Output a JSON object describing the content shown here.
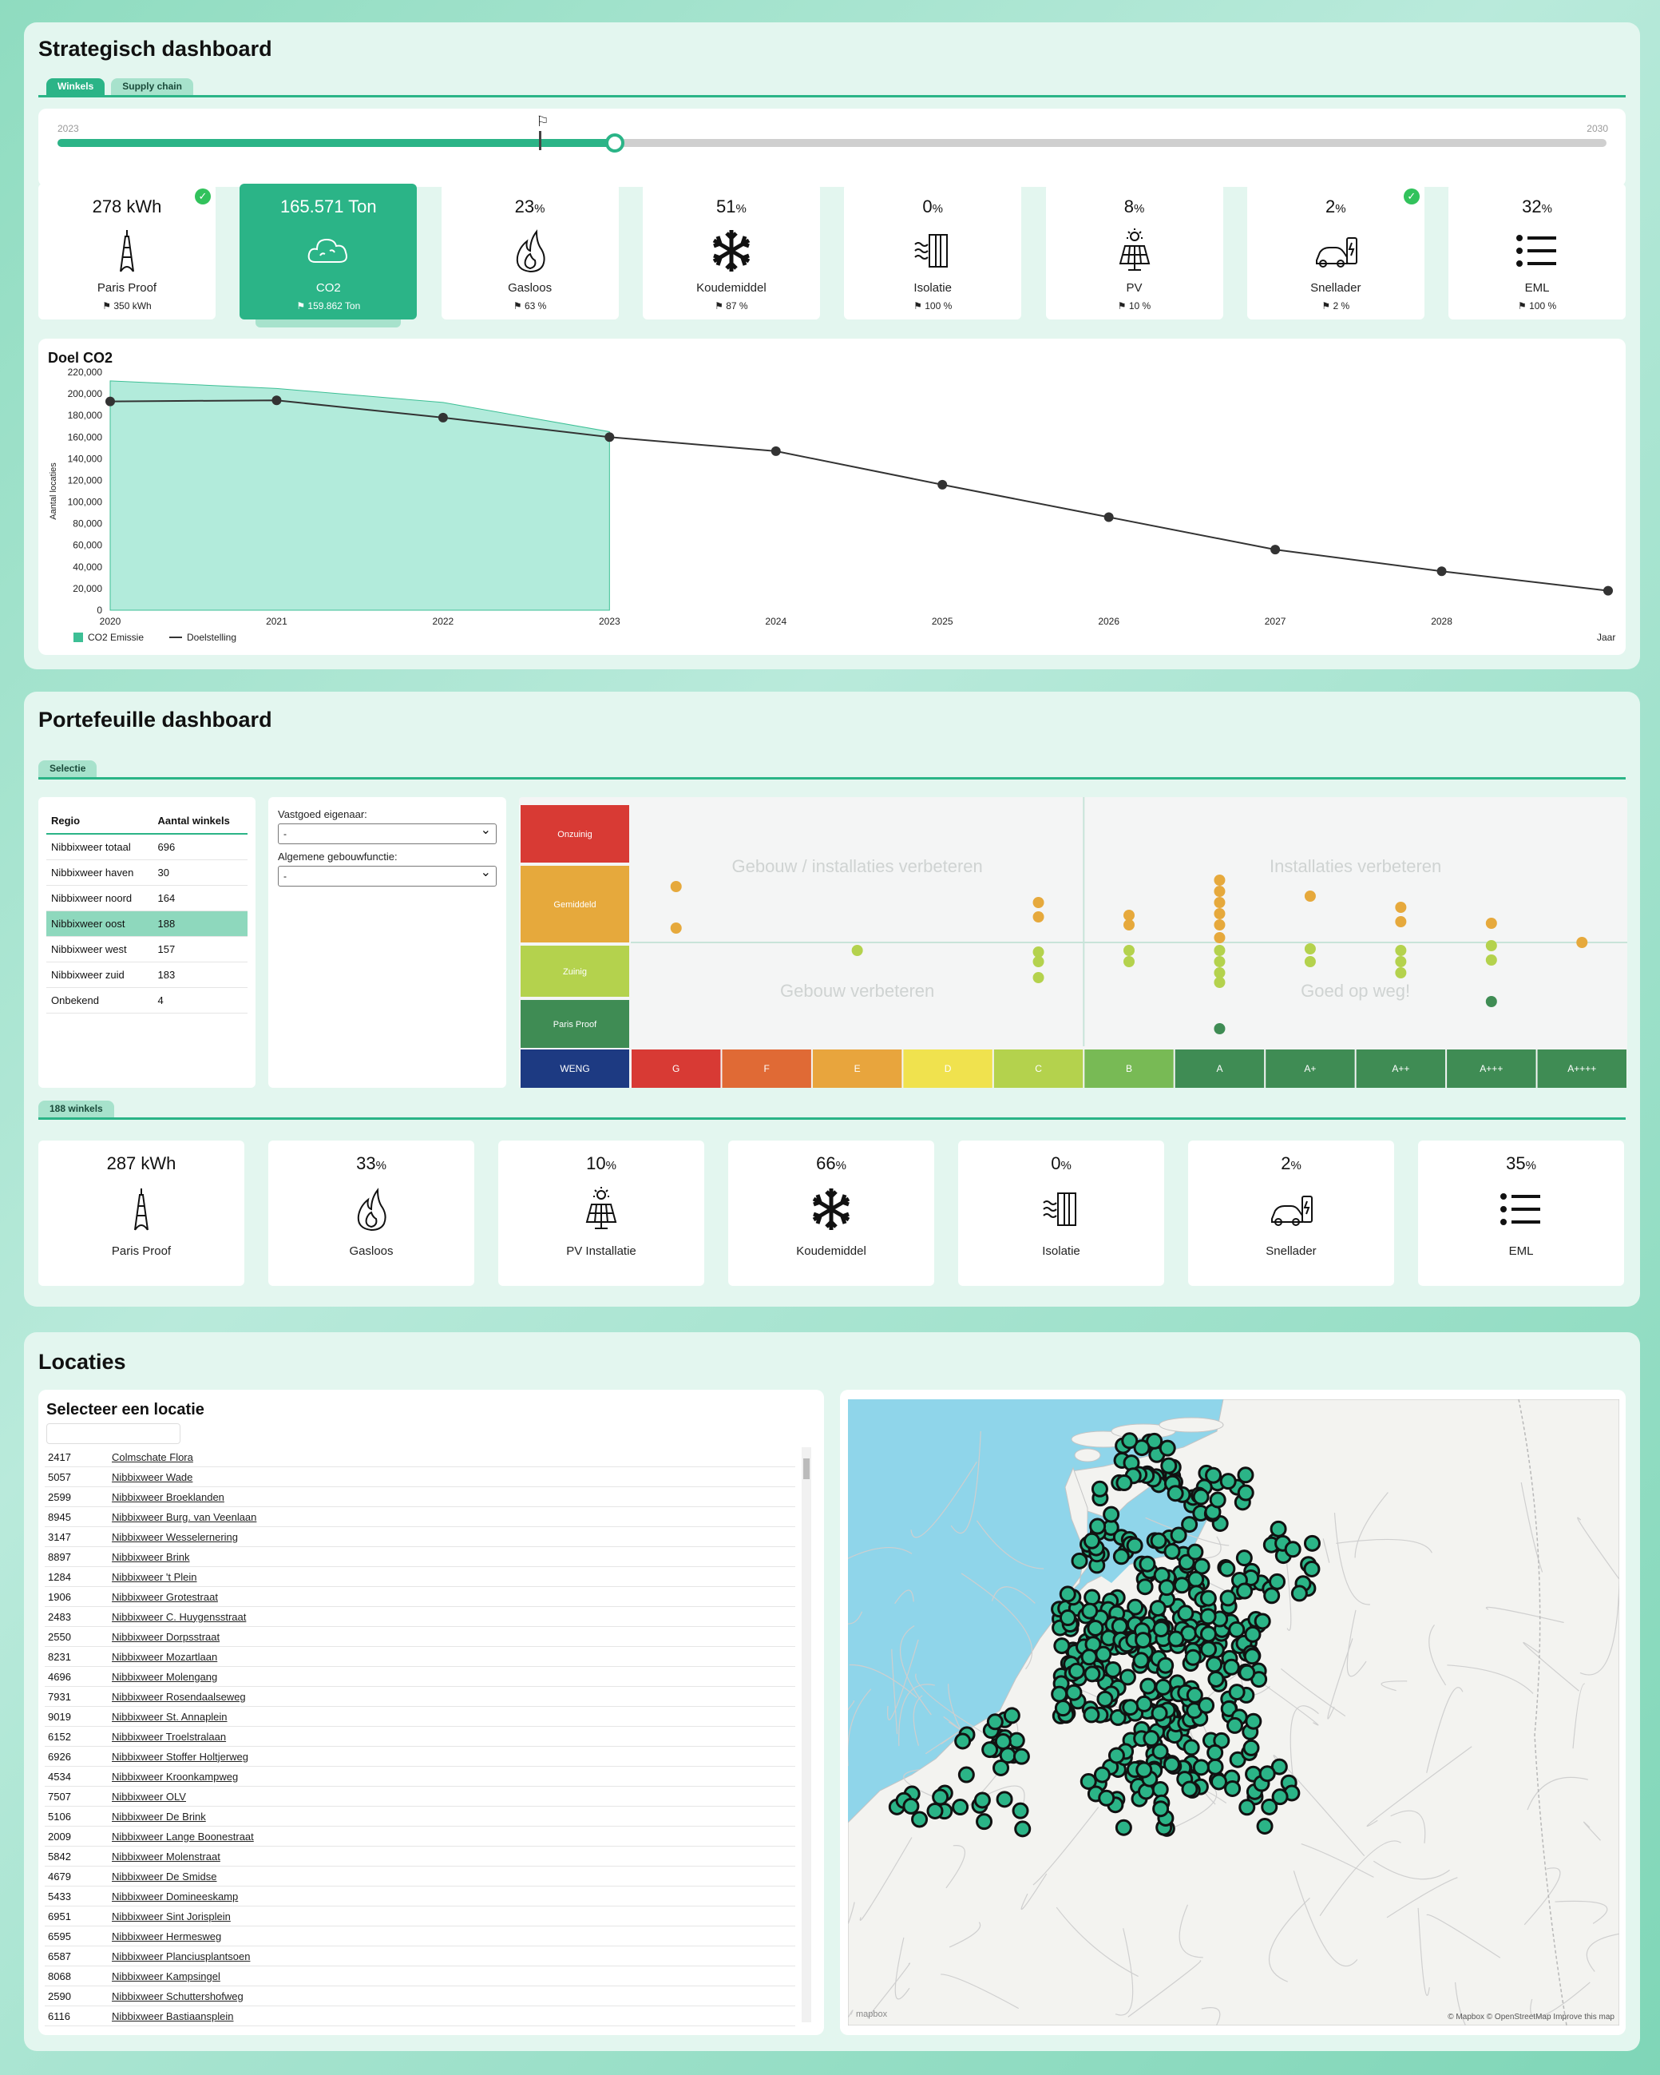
{
  "strategic": {
    "title": "Strategisch dashboard",
    "tabs": [
      "Winkels",
      "Supply chain"
    ],
    "slider": {
      "start": "2023",
      "end": "2030",
      "progress": 0.36,
      "flag": 0.31
    },
    "kpis": [
      {
        "value": "278 kWh",
        "unit": "",
        "label": "Paris Proof",
        "target": "350 kWh",
        "icon": "eiffel-tower-icon",
        "check": true
      },
      {
        "value": "165.571 Ton",
        "unit": "",
        "label": "CO2",
        "target": "159.862 Ton",
        "icon": "cloud-icon",
        "check": false
      },
      {
        "value": "23",
        "unit": "%",
        "label": "Gasloos",
        "target": "63 %",
        "icon": "flame-icon",
        "check": false
      },
      {
        "value": "51",
        "unit": "%",
        "label": "Koudemiddel",
        "target": "87 %",
        "icon": "snowflake-icon",
        "check": false
      },
      {
        "value": "0",
        "unit": "%",
        "label": "Isolatie",
        "target": "100 %",
        "icon": "insulation-icon",
        "check": false
      },
      {
        "value": "8",
        "unit": "%",
        "label": "PV",
        "target": "10 %",
        "icon": "solar-panel-icon",
        "check": false
      },
      {
        "value": "2",
        "unit": "%",
        "label": "Snellader",
        "target": "2 %",
        "icon": "ev-charger-icon",
        "check": true
      },
      {
        "value": "32",
        "unit": "%",
        "label": "EML",
        "target": "100 %",
        "icon": "list-icon",
        "check": false
      }
    ]
  },
  "chart_data": {
    "type": "line",
    "title": "Doel CO2",
    "ylabel": "Aantal locaties",
    "xlabel": "Jaar",
    "x": [
      2020,
      2021,
      2022,
      2023,
      2024,
      2025,
      2026,
      2027,
      2028,
      2029
    ],
    "x_ticks": [
      "2020",
      "2021",
      "2022",
      "2023",
      "2024",
      "2025",
      "2026",
      "2027",
      "2028"
    ],
    "y_ticks": [
      "0",
      "20,000",
      "40,000",
      "60,000",
      "80,000",
      "100,000",
      "120,000",
      "140,000",
      "160,000",
      "180,000",
      "200,000",
      "220,000"
    ],
    "ylim": [
      0,
      220000
    ],
    "series": [
      {
        "name": "CO2 Emissie",
        "type": "area",
        "color": "#b2ebdb",
        "x": [
          2020,
          2021,
          2022,
          2023
        ],
        "values": [
          212000,
          205000,
          192000,
          165000
        ]
      },
      {
        "name": "Doelstelling",
        "type": "line",
        "color": "#333333",
        "x": [
          2020,
          2021,
          2022,
          2023,
          2024,
          2025,
          2026,
          2027,
          2028,
          2029
        ],
        "values": [
          193000,
          194000,
          178000,
          160000,
          147000,
          116000,
          86000,
          56000,
          36000,
          18000
        ]
      }
    ],
    "legend": "bottom-left"
  },
  "portfolio": {
    "title": "Portefeuille dashboard",
    "tab": "Selectie",
    "region_table": {
      "headers": [
        "Regio",
        "Aantal winkels"
      ],
      "rows": [
        [
          "Nibbixweer totaal",
          "696"
        ],
        [
          "Nibbixweer haven",
          "30"
        ],
        [
          "Nibbixweer noord",
          "164"
        ],
        [
          "Nibbixweer oost",
          "188"
        ],
        [
          "Nibbixweer west",
          "157"
        ],
        [
          "Nibbixweer zuid",
          "183"
        ],
        [
          "Onbekend",
          "4"
        ]
      ],
      "highlight": 3
    },
    "filters": [
      {
        "label": "Vastgoed eigenaar:",
        "value": "-"
      },
      {
        "label": "Algemene gebouwfunctie:",
        "value": "-"
      }
    ],
    "matrix": {
      "rows": [
        {
          "label": "Onzuinig",
          "color": "#d83a34"
        },
        {
          "label": "Gemiddeld",
          "color": "#e6a93c"
        },
        {
          "label": "Zuinig",
          "color": "#b4d24d"
        },
        {
          "label": "Paris Proof",
          "color": "#3f8c54"
        }
      ],
      "corner": "WENG",
      "cols": [
        {
          "label": "G",
          "color": "#d83a34"
        },
        {
          "label": "F",
          "color": "#e06a35"
        },
        {
          "label": "E",
          "color": "#e8a53d"
        },
        {
          "label": "D",
          "color": "#f0e24e"
        },
        {
          "label": "C",
          "color": "#b4d24d"
        },
        {
          "label": "B",
          "color": "#78ba55"
        },
        {
          "label": "A",
          "color": "#3f8c54"
        },
        {
          "label": "A+",
          "color": "#3f8c54"
        },
        {
          "label": "A++",
          "color": "#3f8c54"
        },
        {
          "label": "A+++",
          "color": "#3f8c54"
        },
        {
          "label": "A++++",
          "color": "#3f8c54"
        }
      ],
      "quadrants": [
        "Gebouw / installaties verbeteren",
        "Installaties verbeteren",
        "Gebouw verbeteren",
        "Goed op weg!"
      ]
    },
    "count_tab": "188 winkels",
    "kpis": [
      {
        "value": "287 kWh",
        "unit": "",
        "label": "Paris Proof",
        "icon": "eiffel-tower-icon"
      },
      {
        "value": "33",
        "unit": "%",
        "label": "Gasloos",
        "icon": "flame-icon"
      },
      {
        "value": "10",
        "unit": "%",
        "label": "PV Installatie",
        "icon": "solar-panel-icon"
      },
      {
        "value": "66",
        "unit": "%",
        "label": "Koudemiddel",
        "icon": "snowflake-icon"
      },
      {
        "value": "0",
        "unit": "%",
        "label": "Isolatie",
        "icon": "insulation-icon"
      },
      {
        "value": "2",
        "unit": "%",
        "label": "Snellader",
        "icon": "ev-charger-icon"
      },
      {
        "value": "35",
        "unit": "%",
        "label": "EML",
        "icon": "list-icon"
      }
    ]
  },
  "locations": {
    "title": "Locaties",
    "list_title": "Selecteer een locatie",
    "search_placeholder": "",
    "items": [
      [
        "2417",
        "Colmschate Flora"
      ],
      [
        "5057",
        "Nibbixweer Wade"
      ],
      [
        "2599",
        "Nibbixweer Broeklanden"
      ],
      [
        "8945",
        "Nibbixweer Burg. van Veenlaan"
      ],
      [
        "3147",
        "Nibbixweer Wesselernering"
      ],
      [
        "8897",
        "Nibbixweer Brink"
      ],
      [
        "1284",
        "Nibbixweer 't Plein"
      ],
      [
        "1906",
        "Nibbixweer Grotestraat"
      ],
      [
        "2483",
        "Nibbixweer C. Huygensstraat"
      ],
      [
        "2550",
        "Nibbixweer Dorpsstraat"
      ],
      [
        "8231",
        "Nibbixweer Mozartlaan"
      ],
      [
        "4696",
        "Nibbixweer Molengang"
      ],
      [
        "7931",
        "Nibbixweer Rosendaalseweg"
      ],
      [
        "9019",
        "Nibbixweer St. Annaplein"
      ],
      [
        "6152",
        "Nibbixweer Troelstralaan"
      ],
      [
        "6926",
        "Nibbixweer Stoffer Holtjerweg"
      ],
      [
        "4534",
        "Nibbixweer Kroonkampweg"
      ],
      [
        "7507",
        "Nibbixweer OLV"
      ],
      [
        "5106",
        "Nibbixweer De Brink"
      ],
      [
        "2009",
        "Nibbixweer Lange Boonestraat"
      ],
      [
        "5842",
        "Nibbixweer Molenstraat"
      ],
      [
        "4679",
        "Nibbixweer De Smidse"
      ],
      [
        "5433",
        "Nibbixweer Domineeskamp"
      ],
      [
        "6951",
        "Nibbixweer Sint Jorisplein"
      ],
      [
        "6595",
        "Nibbixweer Hermesweg"
      ],
      [
        "6587",
        "Nibbixweer Planciusplantsoen"
      ],
      [
        "8068",
        "Nibbixweer Kampsingel"
      ],
      [
        "2590",
        "Nibbixweer Schuttershofweg"
      ],
      [
        "6116",
        "Nibbixweer Bastiaansplein"
      ]
    ],
    "map_attribution": "© Mapbox © OpenStreetMap Improve this map",
    "map_logo": "mapbox",
    "marker_color": "#2bb487"
  }
}
